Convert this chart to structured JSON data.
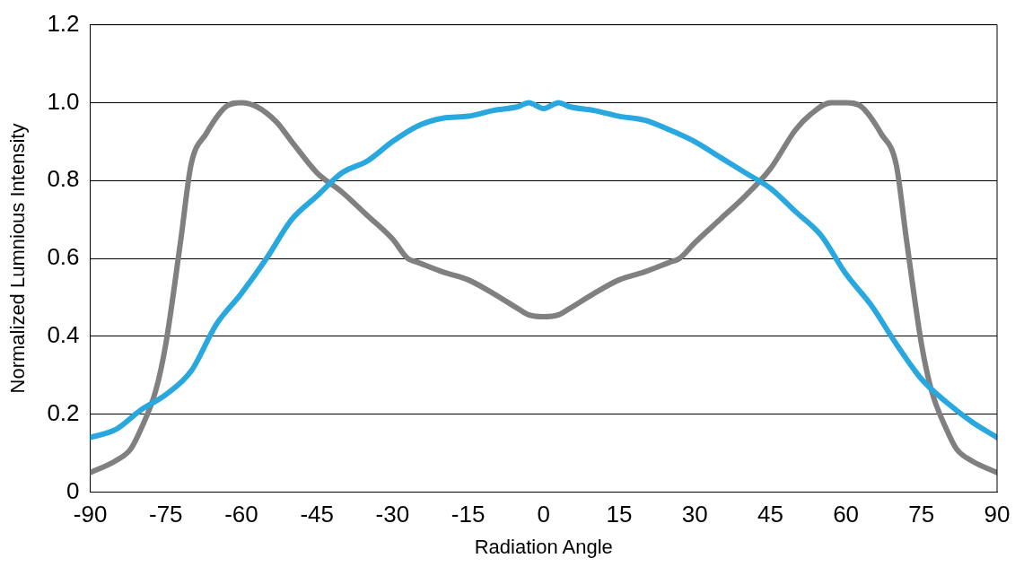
{
  "chart_data": {
    "type": "line",
    "xlabel": "Radiation Angle",
    "ylabel": "Normalized Lumnious Intensity",
    "xlim": [
      -90,
      90
    ],
    "xticks": [
      -90,
      -75,
      -60,
      -45,
      -30,
      -15,
      0,
      15,
      30,
      45,
      60,
      75,
      90
    ],
    "ylim": [
      0,
      1.2
    ],
    "yticks": [
      0,
      0.2,
      0.4,
      0.6,
      0.8,
      {
        "value": 1,
        "label": "1.0"
      },
      1.2
    ],
    "grid": "y",
    "legend": false,
    "marker": "none",
    "line_style": "solid",
    "series": [
      {
        "color": "#29a8e0",
        "x": [
          -90,
          -85,
          -80,
          -75,
          -70,
          -65,
          -60,
          -55,
          -50,
          -45,
          -40,
          -35,
          -30,
          -25,
          -20,
          -15,
          -10,
          -5,
          -3,
          0,
          3,
          5,
          10,
          15,
          20,
          25,
          30,
          35,
          40,
          45,
          50,
          55,
          60,
          65,
          70,
          75,
          80,
          85,
          90
        ],
        "values": [
          0.14,
          0.16,
          0.21,
          0.25,
          0.31,
          0.43,
          0.51,
          0.6,
          0.7,
          0.76,
          0.82,
          0.85,
          0.9,
          0.94,
          0.96,
          0.965,
          0.98,
          0.99,
          1.0,
          0.985,
          1.0,
          0.99,
          0.98,
          0.965,
          0.955,
          0.93,
          0.9,
          0.86,
          0.82,
          0.78,
          0.72,
          0.66,
          0.56,
          0.48,
          0.38,
          0.29,
          0.23,
          0.18,
          0.14
        ]
      },
      {
        "color": "#808080",
        "x": [
          -90,
          -85,
          -82,
          -80,
          -77,
          -75,
          -72,
          -70,
          -67,
          -63,
          -60,
          -57,
          -53,
          -50,
          -45,
          -40,
          -35,
          -30,
          -27,
          -25,
          -20,
          -15,
          -10,
          -5,
          -3,
          0,
          3,
          5,
          10,
          15,
          20,
          25,
          27,
          30,
          35,
          40,
          45,
          50,
          53,
          57,
          60,
          63,
          67,
          70,
          72,
          75,
          77,
          80,
          82,
          85,
          90
        ],
        "values": [
          0.05,
          0.08,
          0.11,
          0.16,
          0.26,
          0.38,
          0.65,
          0.84,
          0.92,
          0.99,
          1.0,
          0.99,
          0.95,
          0.9,
          0.82,
          0.77,
          0.71,
          0.65,
          0.6,
          0.59,
          0.565,
          0.545,
          0.51,
          0.47,
          0.455,
          0.45,
          0.455,
          0.47,
          0.51,
          0.545,
          0.565,
          0.59,
          0.6,
          0.64,
          0.7,
          0.76,
          0.83,
          0.93,
          0.97,
          1.0,
          1.0,
          0.99,
          0.92,
          0.84,
          0.65,
          0.38,
          0.26,
          0.16,
          0.11,
          0.08,
          0.05
        ]
      }
    ]
  }
}
